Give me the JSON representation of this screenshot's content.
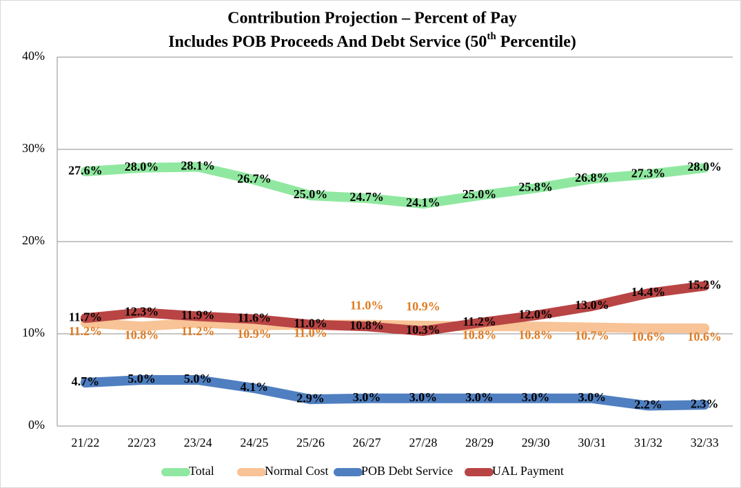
{
  "chart_data": {
    "type": "line",
    "title": "Contribution Projection – Percent of Pay",
    "subtitle": [
      "Includes POB Proceeds And Debt Service (50",
      "th",
      " Percentile)"
    ],
    "categories": [
      "21/22",
      "22/23",
      "23/24",
      "24/25",
      "25/26",
      "26/27",
      "27/28",
      "28/29",
      "29/30",
      "30/31",
      "31/32",
      "32/33"
    ],
    "ylim": [
      0,
      40
    ],
    "yticks": [
      {
        "value": 0,
        "label": "0%"
      },
      {
        "value": 10,
        "label": "10%"
      },
      {
        "value": 20,
        "label": "20%"
      },
      {
        "value": 30,
        "label": "30%"
      },
      {
        "value": 40,
        "label": "40%"
      }
    ],
    "grid": true,
    "legend": "bottom",
    "series": [
      {
        "name": "Total",
        "color": "#90e8a0",
        "label_color": "#000000",
        "values": [
          27.6,
          28.0,
          28.1,
          26.7,
          25.0,
          24.7,
          24.1,
          25.0,
          25.8,
          26.8,
          27.3,
          28.0
        ],
        "value_labels": [
          "27.6%",
          "28.0%",
          "28.1%",
          "26.7%",
          "25.0%",
          "24.7%",
          "24.1%",
          "25.0%",
          "25.8%",
          "26.8%",
          "27.3%",
          "28.0%"
        ]
      },
      {
        "name": "Normal Cost",
        "color": "#f8c396",
        "label_color": "#e07b20",
        "values": [
          11.2,
          10.8,
          11.2,
          10.9,
          11.0,
          11.0,
          10.9,
          10.8,
          10.8,
          10.7,
          10.6,
          10.6
        ],
        "value_labels": [
          "11.2%",
          "10.8%",
          "11.2%",
          "10.9%",
          "11.0%",
          "11.0%",
          "10.9%",
          "10.8%",
          "10.8%",
          "10.7%",
          "10.6%",
          "10.6%"
        ]
      },
      {
        "name": "POB Debt Service",
        "color": "#4f7fc0",
        "label_color": "#000000",
        "values": [
          4.7,
          5.0,
          5.0,
          4.1,
          2.9,
          3.0,
          3.0,
          3.0,
          3.0,
          3.0,
          2.2,
          2.3
        ],
        "value_labels": [
          "4.7%",
          "5.0%",
          "5.0%",
          "4.1%",
          "2.9%",
          "3.0%",
          "3.0%",
          "3.0%",
          "3.0%",
          "3.0%",
          "2.2%",
          "2.3%"
        ]
      },
      {
        "name": "UAL Payment",
        "color": "#b94444",
        "label_color": "#000000",
        "values": [
          11.7,
          12.3,
          11.9,
          11.6,
          11.0,
          10.8,
          10.3,
          11.2,
          12.0,
          13.0,
          14.4,
          15.2
        ],
        "value_labels": [
          "11.7%",
          "12.3%",
          "11.9%",
          "11.6%",
          "11.0%",
          "10.8%",
          "10.3%",
          "11.2%",
          "12.0%",
          "13.0%",
          "14.4%",
          "15.2%"
        ]
      }
    ]
  }
}
